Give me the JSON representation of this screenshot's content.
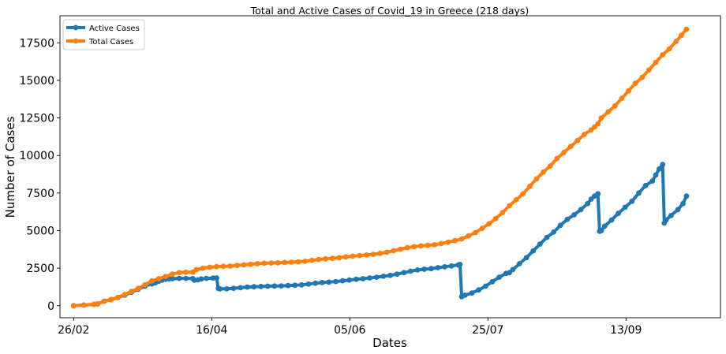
{
  "chart_data": {
    "type": "line",
    "title": "Total and Active Cases of Covid_19 in Greece (218 days)",
    "xlabel": "Dates",
    "ylabel": "Number of Cases",
    "x_ticks": [
      "26/02",
      "16/04",
      "05/06",
      "25/07",
      "13/09"
    ],
    "y_ticks": [
      "0",
      "2500",
      "5000",
      "7500",
      "10000",
      "12500",
      "15000",
      "17500"
    ],
    "ylim": [
      -800,
      19300
    ],
    "legend_position": "top-left",
    "series": [
      {
        "name": "Active Cases",
        "color": "#1f77b4",
        "points": [
          [
            0,
            0
          ],
          [
            6,
            40
          ],
          [
            12,
            90
          ],
          [
            14,
            120
          ],
          [
            18,
            300
          ],
          [
            22,
            400
          ],
          [
            26,
            540
          ],
          [
            30,
            700
          ],
          [
            34,
            900
          ],
          [
            38,
            1100
          ],
          [
            42,
            1300
          ],
          [
            44,
            1450
          ],
          [
            46,
            1450
          ],
          [
            48,
            1520
          ],
          [
            50,
            1620
          ],
          [
            52,
            1700
          ],
          [
            54,
            1760
          ],
          [
            56,
            1790
          ],
          [
            58,
            1800
          ],
          [
            62,
            1820
          ],
          [
            66,
            1820
          ],
          [
            70,
            1810
          ],
          [
            71,
            1700
          ],
          [
            73,
            1720
          ],
          [
            75,
            1780
          ],
          [
            78,
            1820
          ],
          [
            82,
            1840
          ],
          [
            84,
            1850
          ],
          [
            85,
            1150
          ],
          [
            86,
            1120
          ],
          [
            90,
            1120
          ],
          [
            94,
            1160
          ],
          [
            98,
            1200
          ],
          [
            102,
            1240
          ],
          [
            106,
            1260
          ],
          [
            110,
            1280
          ],
          [
            114,
            1300
          ],
          [
            118,
            1310
          ],
          [
            122,
            1320
          ],
          [
            126,
            1340
          ],
          [
            130,
            1360
          ],
          [
            134,
            1390
          ],
          [
            138,
            1440
          ],
          [
            142,
            1500
          ],
          [
            146,
            1540
          ],
          [
            150,
            1570
          ],
          [
            154,
            1610
          ],
          [
            158,
            1660
          ],
          [
            162,
            1710
          ],
          [
            166,
            1760
          ],
          [
            170,
            1800
          ],
          [
            174,
            1850
          ],
          [
            178,
            1900
          ],
          [
            182,
            1960
          ],
          [
            186,
            2020
          ],
          [
            190,
            2100
          ],
          [
            194,
            2200
          ],
          [
            198,
            2300
          ],
          [
            202,
            2380
          ],
          [
            206,
            2430
          ],
          [
            210,
            2470
          ],
          [
            214,
            2530
          ],
          [
            218,
            2590
          ],
          [
            222,
            2650
          ],
          [
            226,
            2710
          ],
          [
            227,
            2750
          ],
          [
            228,
            600
          ],
          [
            230,
            700
          ],
          [
            234,
            850
          ],
          [
            238,
            1050
          ],
          [
            242,
            1300
          ],
          [
            246,
            1600
          ],
          [
            250,
            1900
          ],
          [
            254,
            2150
          ],
          [
            256,
            2200
          ],
          [
            258,
            2400
          ],
          [
            262,
            2800
          ],
          [
            266,
            3200
          ],
          [
            270,
            3650
          ],
          [
            274,
            4100
          ],
          [
            278,
            4550
          ],
          [
            282,
            4900
          ],
          [
            286,
            5350
          ],
          [
            290,
            5750
          ],
          [
            294,
            6050
          ],
          [
            298,
            6400
          ],
          [
            302,
            6800
          ],
          [
            304,
            7100
          ],
          [
            306,
            7300
          ],
          [
            308,
            7450
          ],
          [
            309,
            4950
          ],
          [
            310,
            5000
          ],
          [
            312,
            5300
          ],
          [
            316,
            5700
          ],
          [
            320,
            6150
          ],
          [
            324,
            6550
          ],
          [
            328,
            6950
          ],
          [
            332,
            7500
          ],
          [
            336,
            8000
          ],
          [
            340,
            8300
          ],
          [
            342,
            8700
          ],
          [
            344,
            9100
          ],
          [
            346,
            9400
          ],
          [
            347,
            5500
          ],
          [
            348,
            5700
          ],
          [
            351,
            6000
          ],
          [
            355,
            6400
          ],
          [
            358,
            6800
          ],
          [
            360,
            7300
          ]
        ]
      },
      {
        "name": "Total Cases",
        "color": "#ff7f0e",
        "points": [
          [
            0,
            0
          ],
          [
            6,
            40
          ],
          [
            12,
            90
          ],
          [
            14,
            120
          ],
          [
            18,
            300
          ],
          [
            22,
            420
          ],
          [
            26,
            550
          ],
          [
            30,
            750
          ],
          [
            34,
            950
          ],
          [
            38,
            1150
          ],
          [
            42,
            1400
          ],
          [
            46,
            1650
          ],
          [
            50,
            1800
          ],
          [
            54,
            1950
          ],
          [
            58,
            2100
          ],
          [
            62,
            2200
          ],
          [
            66,
            2230
          ],
          [
            70,
            2230
          ],
          [
            72,
            2400
          ],
          [
            76,
            2500
          ],
          [
            80,
            2560
          ],
          [
            84,
            2600
          ],
          [
            88,
            2620
          ],
          [
            92,
            2640
          ],
          [
            96,
            2680
          ],
          [
            100,
            2720
          ],
          [
            104,
            2760
          ],
          [
            108,
            2800
          ],
          [
            112,
            2830
          ],
          [
            116,
            2840
          ],
          [
            120,
            2860
          ],
          [
            124,
            2880
          ],
          [
            128,
            2900
          ],
          [
            132,
            2920
          ],
          [
            136,
            2960
          ],
          [
            140,
            3020
          ],
          [
            144,
            3080
          ],
          [
            148,
            3120
          ],
          [
            152,
            3150
          ],
          [
            156,
            3200
          ],
          [
            160,
            3250
          ],
          [
            164,
            3300
          ],
          [
            168,
            3340
          ],
          [
            172,
            3380
          ],
          [
            176,
            3420
          ],
          [
            180,
            3480
          ],
          [
            184,
            3560
          ],
          [
            188,
            3660
          ],
          [
            192,
            3760
          ],
          [
            196,
            3860
          ],
          [
            200,
            3930
          ],
          [
            204,
            3980
          ],
          [
            208,
            4020
          ],
          [
            212,
            4060
          ],
          [
            216,
            4140
          ],
          [
            220,
            4230
          ],
          [
            224,
            4330
          ],
          [
            228,
            4450
          ],
          [
            232,
            4650
          ],
          [
            236,
            4870
          ],
          [
            240,
            5150
          ],
          [
            244,
            5450
          ],
          [
            248,
            5800
          ],
          [
            252,
            6200
          ],
          [
            256,
            6650
          ],
          [
            260,
            7050
          ],
          [
            264,
            7450
          ],
          [
            268,
            7950
          ],
          [
            272,
            8450
          ],
          [
            276,
            8900
          ],
          [
            280,
            9300
          ],
          [
            284,
            9800
          ],
          [
            288,
            10200
          ],
          [
            292,
            10600
          ],
          [
            296,
            11000
          ],
          [
            300,
            11400
          ],
          [
            304,
            11700
          ],
          [
            306,
            11900
          ],
          [
            308,
            12100
          ],
          [
            310,
            12500
          ],
          [
            314,
            12900
          ],
          [
            318,
            13300
          ],
          [
            322,
            13800
          ],
          [
            326,
            14300
          ],
          [
            330,
            14800
          ],
          [
            334,
            15200
          ],
          [
            338,
            15700
          ],
          [
            342,
            16200
          ],
          [
            346,
            16700
          ],
          [
            350,
            17100
          ],
          [
            354,
            17600
          ],
          [
            357,
            18000
          ],
          [
            360,
            18400
          ]
        ]
      }
    ]
  }
}
